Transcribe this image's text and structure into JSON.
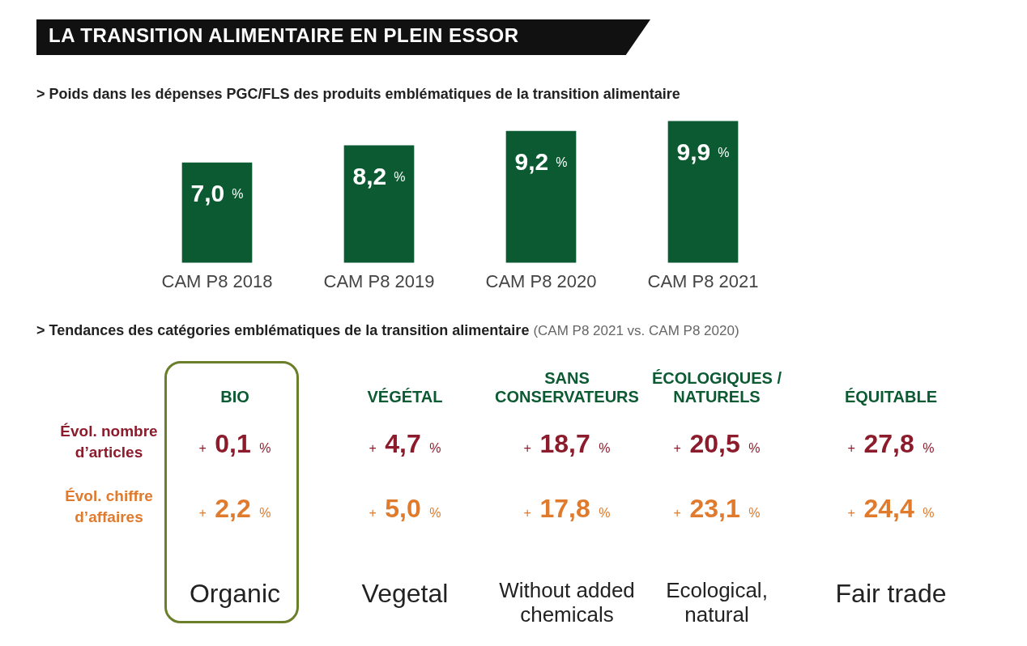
{
  "chart_data": [
    {
      "type": "bar",
      "title": "LA TRANSITION ALIMENTAIRE EN PLEIN ESSOR",
      "subtitle": "> Poids dans les dépenses PGC/FLS des produits emblématiques de la transition alimentaire",
      "categories": [
        "CAM P8 2018",
        "CAM P8 2019",
        "CAM P8 2020",
        "CAM P8 2021"
      ],
      "values": [
        7.0,
        8.2,
        9.2,
        9.9
      ],
      "value_labels": [
        "7,0 %",
        "8,2 %",
        "9,2 %",
        "9,9 %"
      ],
      "color": "#0b5a32",
      "legend": false
    },
    {
      "type": "other",
      "title": "> Tendances des catégories emblématiques de la transition alimentaire",
      "subtitle": "(CAM P8 2021 vs. CAM P8 2020)",
      "categories": [
        "BIO",
        "VÉGÉTAL",
        "SANS CONSERVATEURS",
        "ÉCOLOGIQUES / NATURELS",
        "ÉQUITABLE"
      ],
      "series": [
        {
          "name": "Évol. nombre d’articles",
          "color": "#8c1b2c",
          "values": [
            0.1,
            4.7,
            18.7,
            20.5,
            27.8
          ],
          "value_labels": [
            "+ 0,1 %",
            "+ 4,7 %",
            "+ 18,7 %",
            "+ 20,5 %",
            "+ 27,8 %"
          ]
        },
        {
          "name": "Évol. chiffre d’affaires",
          "color": "#e07a2c",
          "values": [
            2.2,
            5.0,
            17.8,
            23.1,
            24.4
          ],
          "value_labels": [
            "+ 2,2 %",
            "+ 5,0 %",
            "+ 17,8 %",
            "+ 23,1 %",
            "+ 24,4 %"
          ]
        }
      ],
      "annotations": [
        "Organic",
        "Vegetal",
        "Without added chemicals",
        "Ecological, natural",
        "Fair trade"
      ]
    }
  ]
}
